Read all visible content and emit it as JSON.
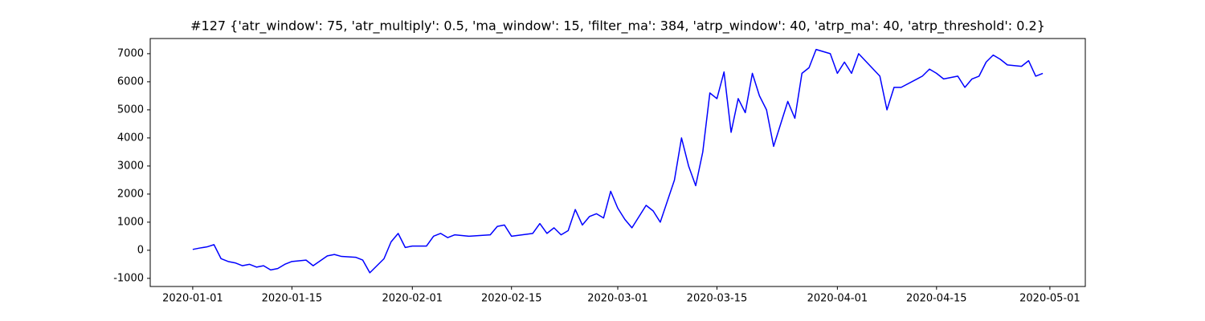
{
  "chart_data": {
    "type": "line",
    "title": "#127 {'atr_window': 75, 'atr_multiply': 0.5, 'ma_window': 15, 'filter_ma': 384, 'atrp_window': 40, 'atrp_ma': 40, 'atrp_threshold': 0.2}",
    "color": "#0000ff",
    "x": [
      "2020-01-01",
      "2020-01-02",
      "2020-01-03",
      "2020-01-04",
      "2020-01-05",
      "2020-01-06",
      "2020-01-07",
      "2020-01-08",
      "2020-01-09",
      "2020-01-10",
      "2020-01-11",
      "2020-01-12",
      "2020-01-13",
      "2020-01-14",
      "2020-01-15",
      "2020-01-17",
      "2020-01-18",
      "2020-01-20",
      "2020-01-21",
      "2020-01-22",
      "2020-01-24",
      "2020-01-25",
      "2020-01-26",
      "2020-01-28",
      "2020-01-29",
      "2020-01-30",
      "2020-01-31",
      "2020-02-01",
      "2020-02-03",
      "2020-02-04",
      "2020-02-05",
      "2020-02-06",
      "2020-02-07",
      "2020-02-09",
      "2020-02-12",
      "2020-02-13",
      "2020-02-14",
      "2020-02-15",
      "2020-02-18",
      "2020-02-19",
      "2020-02-20",
      "2020-02-21",
      "2020-02-22",
      "2020-02-23",
      "2020-02-24",
      "2020-02-25",
      "2020-02-26",
      "2020-02-27",
      "2020-02-28",
      "2020-02-29",
      "2020-03-01",
      "2020-03-02",
      "2020-03-03",
      "2020-03-04",
      "2020-03-05",
      "2020-03-06",
      "2020-03-07",
      "2020-03-09",
      "2020-03-10",
      "2020-03-11",
      "2020-03-12",
      "2020-03-13",
      "2020-03-14",
      "2020-03-15",
      "2020-03-16",
      "2020-03-17",
      "2020-03-18",
      "2020-03-19",
      "2020-03-20",
      "2020-03-21",
      "2020-03-22",
      "2020-03-23",
      "2020-03-24",
      "2020-03-25",
      "2020-03-26",
      "2020-03-27",
      "2020-03-28",
      "2020-03-29",
      "2020-03-31",
      "2020-04-01",
      "2020-04-02",
      "2020-04-03",
      "2020-04-04",
      "2020-04-07",
      "2020-04-08",
      "2020-04-09",
      "2020-04-10",
      "2020-04-13",
      "2020-04-14",
      "2020-04-15",
      "2020-04-16",
      "2020-04-18",
      "2020-04-19",
      "2020-04-20",
      "2020-04-21",
      "2020-04-22",
      "2020-04-23",
      "2020-04-24",
      "2020-04-25",
      "2020-04-27",
      "2020-04-28",
      "2020-04-29",
      "2020-04-30"
    ],
    "values": [
      30,
      80,
      120,
      200,
      -300,
      -400,
      -450,
      -550,
      -500,
      -600,
      -550,
      -700,
      -650,
      -500,
      -400,
      -350,
      -550,
      -200,
      -150,
      -220,
      -250,
      -350,
      -800,
      -300,
      300,
      600,
      100,
      150,
      150,
      500,
      600,
      450,
      550,
      500,
      550,
      850,
      900,
      500,
      600,
      950,
      600,
      800,
      550,
      700,
      1450,
      900,
      1200,
      1300,
      1150,
      2100,
      1500,
      1100,
      800,
      1200,
      1600,
      1400,
      1000,
      2500,
      4000,
      3000,
      2300,
      3500,
      5600,
      5400,
      6350,
      4200,
      5400,
      4900,
      6300,
      5500,
      5000,
      3700,
      4500,
      5300,
      4700,
      6300,
      6500,
      7150,
      7000,
      6300,
      6700,
      6300,
      7000,
      6200,
      5000,
      5800,
      5800,
      6200,
      6450,
      6300,
      6100,
      6200,
      5800,
      6100,
      6200,
      6700,
      6950,
      6800,
      6600,
      6550,
      6750,
      6200,
      6300
    ],
    "xlim": [
      "2019-12-26",
      "2020-05-06"
    ],
    "xticks": [
      "2020-01-01",
      "2020-01-15",
      "2020-02-01",
      "2020-02-15",
      "2020-03-01",
      "2020-03-15",
      "2020-04-01",
      "2020-04-15",
      "2020-05-01"
    ],
    "ylim": [
      -1290,
      7540
    ],
    "yticks": [
      -1000,
      0,
      1000,
      2000,
      3000,
      4000,
      5000,
      6000,
      7000
    ]
  }
}
